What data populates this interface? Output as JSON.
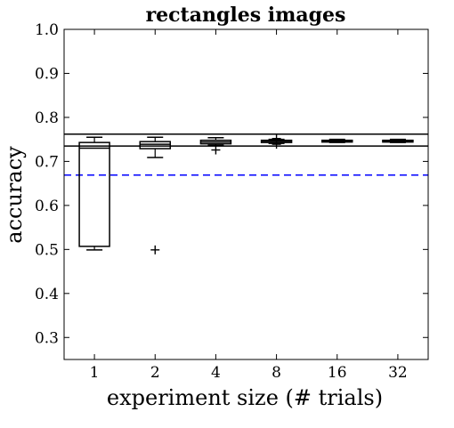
{
  "chart_data": {
    "type": "box",
    "title": "rectangles images",
    "xlabel": "experiment size (# trials)",
    "ylabel": "accuracy",
    "categories": [
      "1",
      "2",
      "4",
      "8",
      "16",
      "32"
    ],
    "ylim": [
      0.25,
      1.0
    ],
    "yticks": [
      0.3,
      0.4,
      0.5,
      0.6,
      0.7,
      0.8,
      0.9,
      1.0
    ],
    "grid": false,
    "boxes": [
      {
        "category": "1",
        "whislo": 0.499,
        "q1": 0.507,
        "med": 0.73,
        "q3": 0.743,
        "whishi": 0.755,
        "fliers": []
      },
      {
        "category": "2",
        "whislo": 0.709,
        "q1": 0.729,
        "med": 0.739,
        "q3": 0.745,
        "whishi": 0.755,
        "fliers": [
          0.499
        ]
      },
      {
        "category": "4",
        "whislo": 0.737,
        "q1": 0.74,
        "med": 0.744,
        "q3": 0.748,
        "whishi": 0.754,
        "fliers": [
          0.726
        ]
      },
      {
        "category": "8",
        "whislo": 0.741,
        "q1": 0.743,
        "med": 0.746,
        "q3": 0.748,
        "whishi": 0.75,
        "fliers": [
          0.739,
          0.752
        ]
      },
      {
        "category": "16",
        "whislo": 0.743,
        "q1": 0.744,
        "med": 0.746,
        "q3": 0.748,
        "whishi": 0.75,
        "fliers": []
      },
      {
        "category": "32",
        "whislo": 0.743,
        "q1": 0.744,
        "med": 0.746,
        "q3": 0.748,
        "whishi": 0.75,
        "fliers": []
      }
    ],
    "reference_lines": [
      {
        "y": 0.762,
        "style": "solid",
        "color": "#000000"
      },
      {
        "y": 0.735,
        "style": "solid",
        "color": "#000000"
      },
      {
        "y": 0.669,
        "style": "dashed",
        "color": "#0000ff"
      }
    ]
  }
}
